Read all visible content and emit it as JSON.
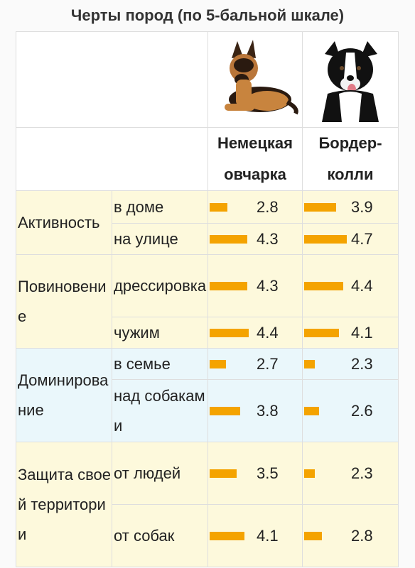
{
  "title": "Черты пород (по 5-бальной шкале)",
  "chart_data": {
    "type": "table",
    "scale_max": 5,
    "bar_color": "#f4a300",
    "breeds": [
      "Немецкая овчарка",
      "Бордер-колли"
    ],
    "groups": [
      {
        "name": "Активность",
        "color": "#fdf9dc",
        "rows": [
          {
            "label": "в доме",
            "values": [
              2.8,
              3.9
            ]
          },
          {
            "label": "на улице",
            "values": [
              4.3,
              4.7
            ]
          }
        ]
      },
      {
        "name": "Повиновение",
        "color": "#fdf9dc",
        "rows": [
          {
            "label": "дрессировка",
            "values": [
              4.3,
              4.4
            ]
          },
          {
            "label": "чужим",
            "values": [
              4.4,
              4.1
            ]
          }
        ]
      },
      {
        "name": "Доминирование",
        "color": "#eaf7fb",
        "rows": [
          {
            "label": "в семье",
            "values": [
              2.7,
              2.3
            ]
          },
          {
            "label": "над собаками",
            "values": [
              3.8,
              2.6
            ]
          }
        ]
      },
      {
        "name": "Защита своей территории",
        "color": "#fdf9dc",
        "rows": [
          {
            "label": "от людей",
            "values": [
              3.5,
              2.3
            ]
          },
          {
            "label": "от собак",
            "values": [
              4.1,
              2.8
            ]
          }
        ]
      }
    ]
  },
  "icons": [
    "german-shepherd-photo",
    "border-collie-photo"
  ]
}
